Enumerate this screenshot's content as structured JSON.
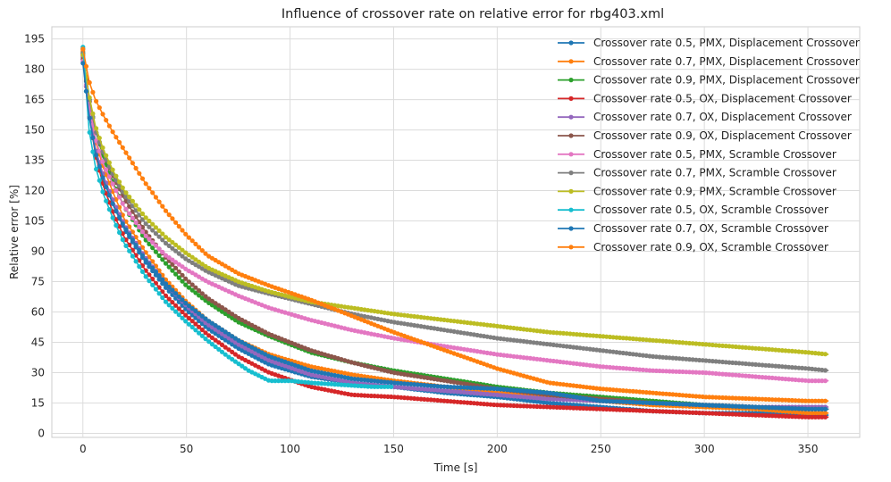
{
  "chart_data": {
    "type": "line",
    "title": "Influence of crossover rate on relative error for rbg403.xml",
    "xlabel": "Time [s]",
    "ylabel": "Relative error [%]",
    "xlim": [
      -15,
      375
    ],
    "ylim": [
      -2,
      201
    ],
    "xticks": [
      0,
      50,
      100,
      150,
      200,
      250,
      300,
      350
    ],
    "yticks": [
      0,
      15,
      30,
      45,
      60,
      75,
      90,
      105,
      120,
      135,
      150,
      165,
      180,
      195
    ],
    "grid": true,
    "legend_position": "top-right",
    "series": [
      {
        "name": "Crossover rate 0.5, PMX, Displacement Crossover",
        "color": "#1f77b4",
        "x": [
          0,
          3,
          6,
          10,
          15,
          20,
          30,
          40,
          50,
          60,
          75,
          90,
          110,
          130,
          150,
          175,
          200,
          225,
          250,
          275,
          300,
          325,
          350,
          360
        ],
        "y": [
          190,
          160,
          140,
          125,
          112,
          101,
          85,
          72,
          61,
          52,
          42,
          34,
          28,
          25,
          23,
          20,
          18,
          15,
          13,
          11,
          10,
          10,
          9,
          9
        ]
      },
      {
        "name": "Crossover rate 0.7, PMX, Displacement Crossover",
        "color": "#ff7f0e",
        "x": [
          0,
          3,
          6,
          10,
          15,
          20,
          30,
          40,
          50,
          60,
          75,
          90,
          110,
          130,
          150,
          175,
          200,
          225,
          250,
          275,
          300,
          325,
          350,
          360
        ],
        "y": [
          189,
          163,
          145,
          131,
          118,
          106,
          90,
          76,
          65,
          56,
          46,
          39,
          33,
          29,
          26,
          23,
          20,
          18,
          16,
          14,
          13,
          12,
          10,
          10
        ]
      },
      {
        "name": "Crossover rate 0.9, PMX, Displacement Crossover",
        "color": "#2ca02c",
        "x": [
          0,
          3,
          6,
          10,
          15,
          20,
          30,
          40,
          50,
          60,
          75,
          90,
          110,
          130,
          150,
          175,
          200,
          225,
          250,
          275,
          300,
          325,
          350,
          360
        ],
        "y": [
          188,
          166,
          150,
          136,
          123,
          112,
          96,
          84,
          73,
          65,
          55,
          48,
          40,
          35,
          31,
          27,
          23,
          20,
          18,
          16,
          14,
          13,
          12,
          12
        ]
      },
      {
        "name": "Crossover rate 0.5, OX, Displacement Crossover",
        "color": "#d62728",
        "x": [
          0,
          3,
          6,
          10,
          15,
          20,
          30,
          40,
          50,
          60,
          75,
          90,
          110,
          130,
          150,
          175,
          200,
          225,
          250,
          275,
          300,
          325,
          350,
          360
        ],
        "y": [
          187,
          158,
          138,
          122,
          108,
          97,
          81,
          68,
          58,
          49,
          38,
          30,
          23,
          19,
          18,
          16,
          14,
          13,
          12,
          11,
          10,
          9,
          8,
          8
        ]
      },
      {
        "name": "Crossover rate 0.7, OX, Displacement Crossover",
        "color": "#9467bd",
        "x": [
          0,
          3,
          6,
          10,
          15,
          20,
          30,
          40,
          50,
          60,
          75,
          90,
          110,
          130,
          150,
          175,
          200,
          225,
          250,
          275,
          300,
          325,
          350,
          360
        ],
        "y": [
          186,
          159,
          141,
          127,
          114,
          103,
          87,
          74,
          63,
          54,
          44,
          36,
          29,
          25,
          23,
          21,
          19,
          17,
          16,
          15,
          14,
          13,
          13,
          13
        ]
      },
      {
        "name": "Crossover rate 0.9, OX, Displacement Crossover",
        "color": "#8c564b",
        "x": [
          0,
          3,
          6,
          10,
          15,
          20,
          30,
          40,
          50,
          60,
          75,
          90,
          110,
          130,
          150,
          175,
          200,
          225,
          250,
          275,
          300,
          325,
          350,
          360
        ],
        "y": [
          185,
          165,
          150,
          138,
          126,
          116,
          100,
          87,
          76,
          67,
          57,
          49,
          41,
          35,
          30,
          26,
          22,
          19,
          17,
          15,
          14,
          13,
          12,
          12
        ]
      },
      {
        "name": "Crossover rate 0.5, PMX, Scramble Crossover",
        "color": "#e377c2",
        "x": [
          0,
          3,
          6,
          10,
          15,
          20,
          30,
          40,
          50,
          60,
          75,
          90,
          110,
          130,
          150,
          175,
          200,
          225,
          250,
          275,
          300,
          325,
          350,
          360
        ],
        "y": [
          184,
          162,
          146,
          133,
          122,
          112,
          98,
          88,
          81,
          75,
          68,
          62,
          56,
          51,
          47,
          43,
          39,
          36,
          33,
          31,
          30,
          28,
          26,
          26
        ]
      },
      {
        "name": "Crossover rate 0.7, PMX, Scramble Crossover",
        "color": "#7f7f7f",
        "x": [
          0,
          3,
          6,
          10,
          15,
          20,
          30,
          40,
          50,
          60,
          75,
          90,
          110,
          130,
          150,
          175,
          200,
          225,
          250,
          275,
          300,
          325,
          350,
          360
        ],
        "y": [
          188,
          166,
          150,
          138,
          127,
          118,
          104,
          94,
          86,
          80,
          73,
          69,
          64,
          59,
          55,
          51,
          47,
          44,
          41,
          38,
          36,
          34,
          32,
          31
        ]
      },
      {
        "name": "Crossover rate 0.9, PMX, Scramble Crossover",
        "color": "#bcbd22",
        "x": [
          0,
          3,
          6,
          10,
          15,
          20,
          30,
          40,
          50,
          60,
          75,
          90,
          110,
          130,
          150,
          175,
          200,
          225,
          250,
          275,
          300,
          325,
          350,
          360
        ],
        "y": [
          187,
          167,
          152,
          140,
          129,
          120,
          107,
          97,
          89,
          82,
          75,
          70,
          65,
          62,
          59,
          56,
          53,
          50,
          48,
          46,
          44,
          42,
          40,
          39
        ]
      },
      {
        "name": "Crossover rate 0.5, OX, Scramble Crossover",
        "color": "#17becf",
        "x": [
          0,
          3,
          6,
          10,
          15,
          20,
          30,
          40,
          50,
          60,
          70,
          80,
          90,
          100,
          110,
          125,
          140,
          150
        ],
        "y": [
          191,
          150,
          132,
          118,
          105,
          94,
          78,
          65,
          55,
          46,
          38,
          31,
          26,
          26,
          25,
          24,
          23,
          23
        ]
      },
      {
        "name": "Crossover rate 0.7, OX, Scramble Crossover",
        "color": "#1f77b4",
        "x": [
          0,
          3,
          6,
          10,
          15,
          20,
          30,
          40,
          50,
          60,
          75,
          90,
          110,
          130,
          150,
          175,
          200,
          225,
          250,
          275,
          300,
          325,
          350,
          360
        ],
        "y": [
          183,
          157,
          139,
          125,
          112,
          102,
          86,
          74,
          64,
          56,
          46,
          38,
          31,
          27,
          25,
          23,
          22,
          20,
          16,
          15,
          14,
          13,
          12,
          12
        ]
      },
      {
        "name": "Crossover rate 0.9, OX, Scramble Crossover",
        "color": "#ff7f0e",
        "x": [
          0,
          3,
          6,
          10,
          15,
          20,
          30,
          40,
          50,
          60,
          75,
          90,
          110,
          130,
          150,
          175,
          200,
          225,
          250,
          275,
          300,
          325,
          350,
          360
        ],
        "y": [
          190,
          174,
          165,
          157,
          148,
          140,
          124,
          110,
          98,
          88,
          79,
          73,
          66,
          58,
          50,
          41,
          32,
          25,
          22,
          20,
          18,
          17,
          16,
          16
        ]
      }
    ]
  }
}
